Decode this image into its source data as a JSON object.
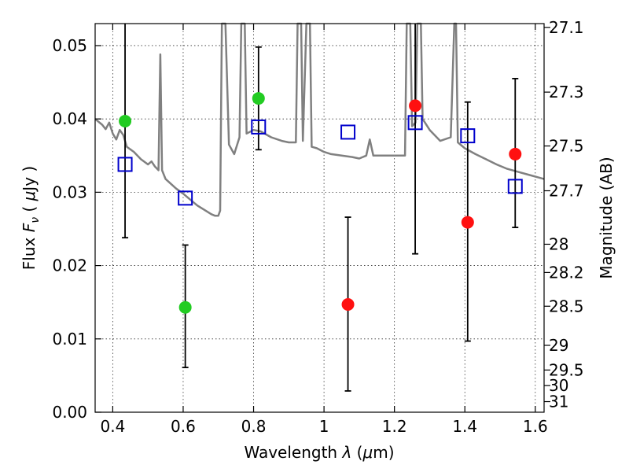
{
  "chart_data": {
    "type": "scatter",
    "xlabel_parts": [
      "Wavelength ",
      "λ",
      " (",
      "μ",
      "m)"
    ],
    "ylabel_parts": [
      "Flux ",
      "F",
      "ν",
      " ( ",
      "μ",
      "Jy )"
    ],
    "y2label": "Magnitude (AB)",
    "xlim": [
      0.35,
      1.625
    ],
    "ylim": [
      0.0,
      0.053
    ],
    "x_ticks": [
      {
        "value": 0.4,
        "label": "0.4"
      },
      {
        "value": 0.6,
        "label": "0.6"
      },
      {
        "value": 0.8,
        "label": "0.8"
      },
      {
        "value": 1.0,
        "label": "1"
      },
      {
        "value": 1.2,
        "label": "1.2"
      },
      {
        "value": 1.4,
        "label": "1.4"
      },
      {
        "value": 1.6,
        "label": "1.6"
      }
    ],
    "y_ticks": [
      {
        "value": 0.0,
        "label": "0.00"
      },
      {
        "value": 0.01,
        "label": "0.01"
      },
      {
        "value": 0.02,
        "label": "0.02"
      },
      {
        "value": 0.03,
        "label": "0.03"
      },
      {
        "value": 0.04,
        "label": "0.04"
      },
      {
        "value": 0.05,
        "label": "0.05"
      }
    ],
    "y2_ticks": [
      {
        "value": 27.1,
        "label": "27.1"
      },
      {
        "value": 27.3,
        "label": "27.3"
      },
      {
        "value": 27.5,
        "label": "27.5"
      },
      {
        "value": 27.7,
        "label": "27.7"
      },
      {
        "value": 28.0,
        "label": "28"
      },
      {
        "value": 28.2,
        "label": "28.2"
      },
      {
        "value": 28.5,
        "label": "28.5"
      },
      {
        "value": 29.0,
        "label": "29"
      },
      {
        "value": 29.5,
        "label": "29.5"
      },
      {
        "value": 30.0,
        "label": "30"
      },
      {
        "value": 31.0,
        "label": "31"
      }
    ],
    "grid": true,
    "series": [
      {
        "kind": "spectrum",
        "color": "#808080",
        "points": [
          [
            0.35,
            0.04
          ],
          [
            0.37,
            0.0392
          ],
          [
            0.38,
            0.0386
          ],
          [
            0.39,
            0.0395
          ],
          [
            0.4,
            0.038
          ],
          [
            0.41,
            0.0372
          ],
          [
            0.42,
            0.0385
          ],
          [
            0.43,
            0.0378
          ],
          [
            0.44,
            0.0362
          ],
          [
            0.46,
            0.0355
          ],
          [
            0.48,
            0.0345
          ],
          [
            0.5,
            0.0338
          ],
          [
            0.51,
            0.0342
          ],
          [
            0.52,
            0.0335
          ],
          [
            0.53,
            0.033
          ],
          [
            0.535,
            0.0488
          ],
          [
            0.54,
            0.033
          ],
          [
            0.55,
            0.0318
          ],
          [
            0.58,
            0.0305
          ],
          [
            0.6,
            0.0298
          ],
          [
            0.62,
            0.029
          ],
          [
            0.64,
            0.0282
          ],
          [
            0.66,
            0.0276
          ],
          [
            0.68,
            0.027
          ],
          [
            0.69,
            0.0268
          ],
          [
            0.7,
            0.0268
          ],
          [
            0.705,
            0.0275
          ],
          [
            0.71,
            0.053
          ],
          [
            0.72,
            0.053
          ],
          [
            0.73,
            0.0365
          ],
          [
            0.745,
            0.0352
          ],
          [
            0.76,
            0.0375
          ],
          [
            0.765,
            0.053
          ],
          [
            0.775,
            0.053
          ],
          [
            0.78,
            0.038
          ],
          [
            0.8,
            0.0385
          ],
          [
            0.82,
            0.0383
          ],
          [
            0.85,
            0.0375
          ],
          [
            0.88,
            0.037
          ],
          [
            0.9,
            0.0368
          ],
          [
            0.92,
            0.0368
          ],
          [
            0.925,
            0.053
          ],
          [
            0.935,
            0.053
          ],
          [
            0.94,
            0.037
          ],
          [
            0.95,
            0.053
          ],
          [
            0.96,
            0.053
          ],
          [
            0.965,
            0.0362
          ],
          [
            0.98,
            0.036
          ],
          [
            1.0,
            0.0355
          ],
          [
            1.02,
            0.0352
          ],
          [
            1.05,
            0.035
          ],
          [
            1.08,
            0.0348
          ],
          [
            1.1,
            0.0346
          ],
          [
            1.12,
            0.035
          ],
          [
            1.13,
            0.0372
          ],
          [
            1.14,
            0.035
          ],
          [
            1.16,
            0.035
          ],
          [
            1.18,
            0.035
          ],
          [
            1.2,
            0.035
          ],
          [
            1.23,
            0.035
          ],
          [
            1.235,
            0.053
          ],
          [
            1.245,
            0.053
          ],
          [
            1.25,
            0.039
          ],
          [
            1.26,
            0.0395
          ],
          [
            1.265,
            0.053
          ],
          [
            1.275,
            0.053
          ],
          [
            1.28,
            0.04
          ],
          [
            1.3,
            0.0385
          ],
          [
            1.33,
            0.037
          ],
          [
            1.36,
            0.0375
          ],
          [
            1.37,
            0.053
          ],
          [
            1.375,
            0.053
          ],
          [
            1.38,
            0.0368
          ],
          [
            1.4,
            0.036
          ],
          [
            1.43,
            0.0352
          ],
          [
            1.46,
            0.0345
          ],
          [
            1.49,
            0.0338
          ],
          [
            1.52,
            0.0332
          ],
          [
            1.55,
            0.0328
          ],
          [
            1.58,
            0.0324
          ],
          [
            1.61,
            0.032
          ],
          [
            1.625,
            0.0318
          ]
        ]
      },
      {
        "kind": "model",
        "marker": "square",
        "color": "#0000cc",
        "points": [
          {
            "x": 0.435,
            "y": 0.0338
          },
          {
            "x": 0.606,
            "y": 0.0292
          },
          {
            "x": 0.814,
            "y": 0.0389
          },
          {
            "x": 1.068,
            "y": 0.0382
          },
          {
            "x": 1.259,
            "y": 0.0395
          },
          {
            "x": 1.408,
            "y": 0.0377
          },
          {
            "x": 1.543,
            "y": 0.0308
          }
        ]
      },
      {
        "kind": "observed",
        "marker": "circle",
        "points": [
          {
            "x": 0.435,
            "y": 0.0397,
            "ylow": 0.0238,
            "yhigh": 0.053,
            "color": "#22cc22"
          },
          {
            "x": 0.606,
            "y": 0.0143,
            "ylow": 0.0061,
            "yhigh": 0.0228,
            "color": "#22cc22"
          },
          {
            "x": 0.814,
            "y": 0.0428,
            "ylow": 0.0358,
            "yhigh": 0.0498,
            "color": "#22cc22"
          },
          {
            "x": 1.068,
            "y": 0.0147,
            "ylow": 0.0029,
            "yhigh": 0.0266,
            "color": "#ff1010"
          },
          {
            "x": 1.259,
            "y": 0.0418,
            "ylow": 0.0216,
            "yhigh": 0.053,
            "color": "#ff1010"
          },
          {
            "x": 1.408,
            "y": 0.0259,
            "ylow": 0.0097,
            "yhigh": 0.0423,
            "color": "#ff1010"
          },
          {
            "x": 1.543,
            "y": 0.0352,
            "ylow": 0.0252,
            "yhigh": 0.0455,
            "color": "#ff1010"
          }
        ]
      }
    ]
  }
}
